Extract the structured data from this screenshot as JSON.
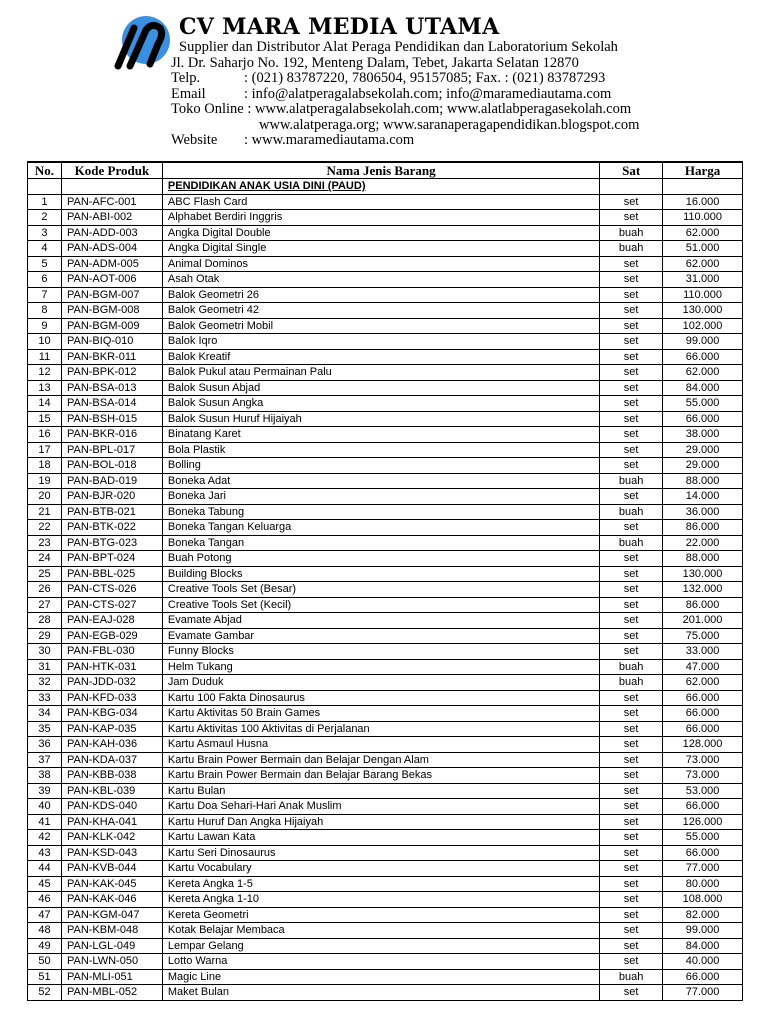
{
  "header": {
    "company": "CV MARA MEDIA UTAMA",
    "tagline": "Supplier dan Distributor Alat Peraga Pendidikan dan Laboratorium Sekolah",
    "address": "Jl. Dr. Saharjo No. 192, Menteng Dalam, Tebet, Jakarta Selatan 12870",
    "telp_label": "Telp.",
    "telp": ": (021) 83787220, 7806504, 95157085; Fax. : (021) 83787293",
    "email_label": "Email",
    "email": ": info@alatperagalabsekolah.com; info@maramediautama.com",
    "toko_label": "Toko Online",
    "toko": " : www.alatperagalabsekolah.com; www.alatlabperagasekolah.com",
    "toko2": "www.alatperaga.org; www.saranaperagapendidikan.blogspot.com",
    "website_label": "Website",
    "website": ": www.maramediautama.com",
    "logo_color": "#3a8fe0"
  },
  "table": {
    "columns": [
      "No.",
      "Kode Produk",
      "Nama Jenis Barang",
      "Sat",
      "Harga"
    ],
    "section": "PENDIDIKAN ANAK USIA DINI (PAUD)",
    "rows": [
      [
        "1",
        "PAN-AFC-001",
        "ABC Flash Card",
        "set",
        "16.000"
      ],
      [
        "2",
        "PAN-ABI-002",
        "Alphabet Berdiri Inggris",
        "set",
        "110.000"
      ],
      [
        "3",
        "PAN-ADD-003",
        "Angka Digital Double",
        "buah",
        "62.000"
      ],
      [
        "4",
        "PAN-ADS-004",
        "Angka Digital Single",
        "buah",
        "51.000"
      ],
      [
        "5",
        "PAN-ADM-005",
        "Animal Dominos",
        "set",
        "62.000"
      ],
      [
        "6",
        "PAN-AOT-006",
        "Asah Otak",
        "set",
        "31.000"
      ],
      [
        "7",
        "PAN-BGM-007",
        "Balok Geometri 26",
        "set",
        "110.000"
      ],
      [
        "8",
        "PAN-BGM-008",
        "Balok Geometri 42",
        "set",
        "130.000"
      ],
      [
        "9",
        "PAN-BGM-009",
        "Balok Geometri Mobil",
        "set",
        "102.000"
      ],
      [
        "10",
        "PAN-BIQ-010",
        "Balok Iqro",
        "set",
        "99.000"
      ],
      [
        "11",
        "PAN-BKR-011",
        "Balok Kreatif",
        "set",
        "66.000"
      ],
      [
        "12",
        "PAN-BPK-012",
        "Balok Pukul atau Permainan Palu",
        "set",
        "62.000"
      ],
      [
        "13",
        "PAN-BSA-013",
        "Balok Susun Abjad",
        "set",
        "84.000"
      ],
      [
        "14",
        "PAN-BSA-014",
        "Balok Susun Angka",
        "set",
        "55.000"
      ],
      [
        "15",
        "PAN-BSH-015",
        "Balok Susun Huruf Hijaiyah",
        "set",
        "66.000"
      ],
      [
        "16",
        "PAN-BKR-016",
        "Binatang Karet",
        "set",
        "38.000"
      ],
      [
        "17",
        "PAN-BPL-017",
        "Bola Plastik",
        "set",
        "29.000"
      ],
      [
        "18",
        "PAN-BOL-018",
        "Bolling",
        "set",
        "29.000"
      ],
      [
        "19",
        "PAN-BAD-019",
        "Boneka Adat",
        "buah",
        "88.000"
      ],
      [
        "20",
        "PAN-BJR-020",
        "Boneka Jari",
        "set",
        "14.000"
      ],
      [
        "21",
        "PAN-BTB-021",
        "Boneka Tabung",
        "buah",
        "36.000"
      ],
      [
        "22",
        "PAN-BTK-022",
        "Boneka Tangan Keluarga",
        "set",
        "86.000"
      ],
      [
        "23",
        "PAN-BTG-023",
        "Boneka Tangan",
        "buah",
        "22.000"
      ],
      [
        "24",
        "PAN-BPT-024",
        "Buah Potong",
        "set",
        "88.000"
      ],
      [
        "25",
        "PAN-BBL-025",
        "Building Blocks",
        "set",
        "130.000"
      ],
      [
        "26",
        "PAN-CTS-026",
        "Creative Tools Set (Besar)",
        "set",
        "132.000"
      ],
      [
        "27",
        "PAN-CTS-027",
        "Creative Tools Set (Kecil)",
        "set",
        "86.000"
      ],
      [
        "28",
        "PAN-EAJ-028",
        "Evamate Abjad",
        "set",
        "201.000"
      ],
      [
        "29",
        "PAN-EGB-029",
        "Evamate Gambar",
        "set",
        "75.000"
      ],
      [
        "30",
        "PAN-FBL-030",
        "Funny Blocks",
        "set",
        "33.000"
      ],
      [
        "31",
        "PAN-HTK-031",
        "Helm Tukang",
        "buah",
        "47.000"
      ],
      [
        "32",
        "PAN-JDD-032",
        "Jam Duduk",
        "buah",
        "62.000"
      ],
      [
        "33",
        "PAN-KFD-033",
        "Kartu 100 Fakta Dinosaurus",
        "set",
        "66.000"
      ],
      [
        "34",
        "PAN-KBG-034",
        "Kartu Aktivitas 50 Brain Games",
        "set",
        "66.000"
      ],
      [
        "35",
        "PAN-KAP-035",
        "Kartu Aktivitas 100 Aktivitas di Perjalanan",
        "set",
        "66.000"
      ],
      [
        "36",
        "PAN-KAH-036",
        "Kartu Asmaul Husna",
        "set",
        "128.000"
      ],
      [
        "37",
        "PAN-KDA-037",
        "Kartu Brain Power Bermain dan Belajar Dengan Alam",
        "set",
        "73.000"
      ],
      [
        "38",
        "PAN-KBB-038",
        "Kartu Brain Power Bermain dan Belajar Barang Bekas",
        "set",
        "73.000"
      ],
      [
        "39",
        "PAN-KBL-039",
        "Kartu Bulan",
        "set",
        "53.000"
      ],
      [
        "40",
        "PAN-KDS-040",
        "Kartu Doa Sehari-Hari Anak Muslim",
        "set",
        "66.000"
      ],
      [
        "41",
        "PAN-KHA-041",
        "Kartu Huruf Dan Angka Hijaiyah",
        "set",
        "126.000"
      ],
      [
        "42",
        "PAN-KLK-042",
        "Kartu Lawan Kata",
        "set",
        "55.000"
      ],
      [
        "43",
        "PAN-KSD-043",
        "Kartu Seri Dinosaurus",
        "set",
        "66.000"
      ],
      [
        "44",
        "PAN-KVB-044",
        "Kartu Vocabulary",
        "set",
        "77.000"
      ],
      [
        "45",
        "PAN-KAK-045",
        "Kereta Angka 1-5",
        "set",
        "80.000"
      ],
      [
        "46",
        "PAN-KAK-046",
        "Kereta Angka 1-10",
        "set",
        "108.000"
      ],
      [
        "47",
        "PAN-KGM-047",
        "Kereta Geometri",
        "set",
        "82.000"
      ],
      [
        "48",
        "PAN-KBM-048",
        "Kotak Belajar Membaca",
        "set",
        "99.000"
      ],
      [
        "49",
        "PAN-LGL-049",
        "Lempar Gelang",
        "set",
        "84.000"
      ],
      [
        "50",
        "PAN-LWN-050",
        "Lotto Warna",
        "set",
        "40.000"
      ],
      [
        "51",
        "PAN-MLI-051",
        "Magic Line",
        "buah",
        "66.000"
      ],
      [
        "52",
        "PAN-MBL-052",
        "Maket Bulan",
        "set",
        "77.000"
      ]
    ]
  }
}
